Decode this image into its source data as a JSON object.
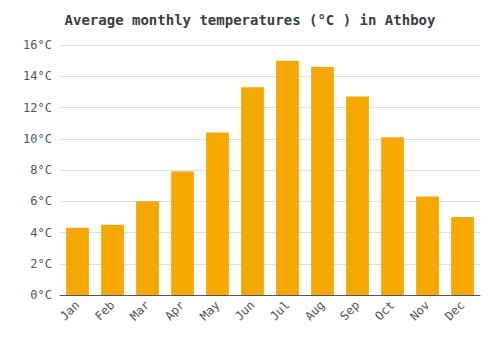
{
  "chart_data": {
    "type": "bar",
    "title": "Average monthly temperatures (°C ) in Athboy",
    "categories": [
      "Jan",
      "Feb",
      "Mar",
      "Apr",
      "May",
      "Jun",
      "Jul",
      "Aug",
      "Sep",
      "Oct",
      "Nov",
      "Dec"
    ],
    "values": [
      4.3,
      4.5,
      6.0,
      7.9,
      10.4,
      13.3,
      15.0,
      14.6,
      12.7,
      10.1,
      6.3,
      5.0
    ],
    "color": "#F5A800",
    "ylim": [
      0,
      16
    ],
    "yticks": [
      {
        "value": 0,
        "label": "0°C"
      },
      {
        "value": 2,
        "label": "2°C"
      },
      {
        "value": 4,
        "label": "4°C"
      },
      {
        "value": 6,
        "label": "6°C"
      },
      {
        "value": 8,
        "label": "8°C"
      },
      {
        "value": 10,
        "label": "10°C"
      },
      {
        "value": 12,
        "label": "12°C"
      },
      {
        "value": 14,
        "label": "14°C"
      },
      {
        "value": 16,
        "label": "16°C"
      }
    ],
    "grid": true
  }
}
